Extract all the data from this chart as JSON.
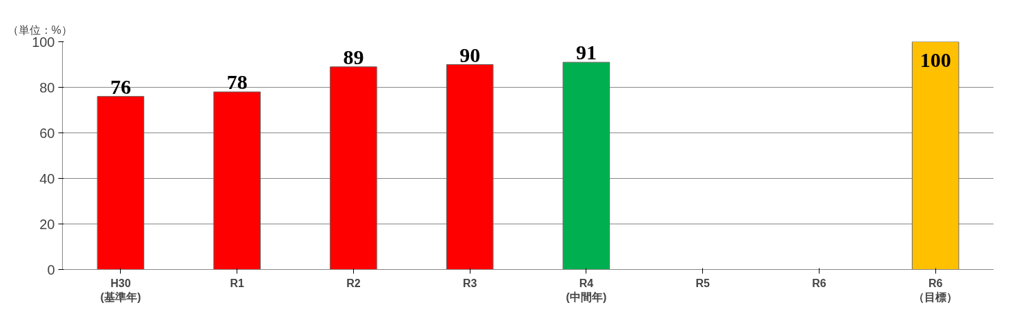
{
  "chart_data": {
    "type": "bar",
    "ylabel": "（単位：%）",
    "categories": [
      "H30\n(基準年)",
      "R1",
      "R2",
      "R3",
      "R4\n(中間年)",
      "R5",
      "R6",
      "R6\n（目標）"
    ],
    "values": [
      76,
      78,
      89,
      90,
      91,
      null,
      null,
      100
    ],
    "colors": [
      "#ff0000",
      "#ff0000",
      "#ff0000",
      "#ff0000",
      "#00b050",
      null,
      null,
      "#ffc000"
    ],
    "ylim": [
      0,
      100
    ],
    "yticks": [
      0,
      20,
      40,
      60,
      80,
      100
    ],
    "grid": "y",
    "data_labels": true
  }
}
